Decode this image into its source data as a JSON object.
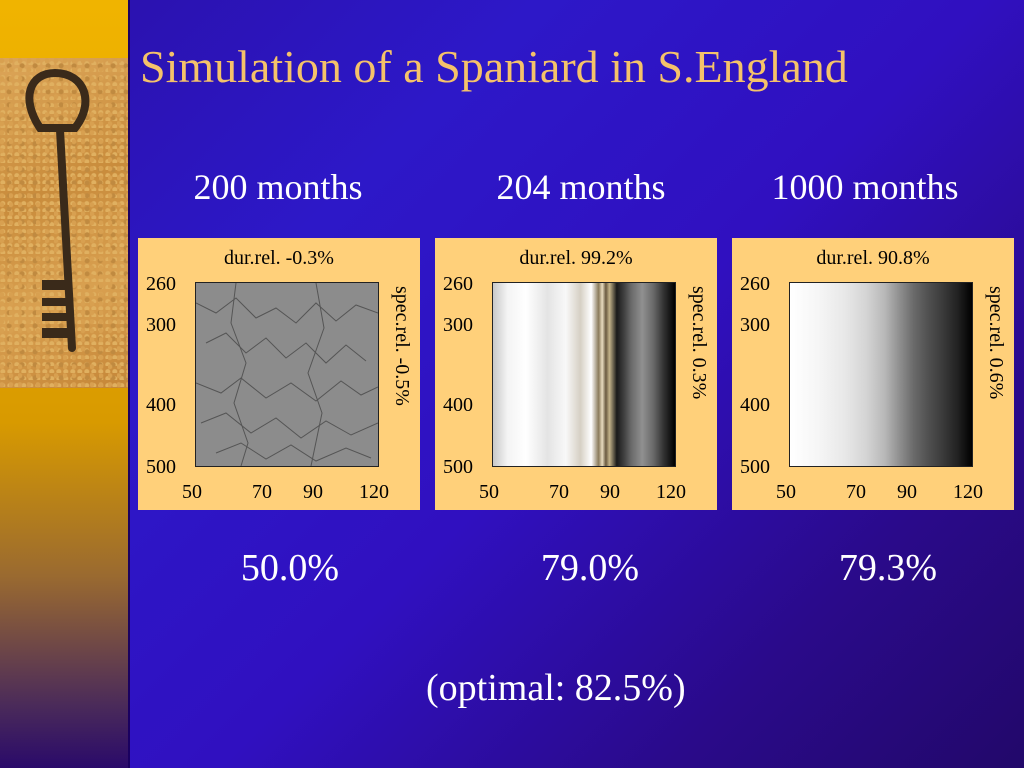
{
  "title": "Simulation of a Spaniard in S.England",
  "columns": [
    {
      "label": "200 months",
      "dur": "dur.rel. -0.3%",
      "spec": "spec.rel. -0.5%",
      "result": "50.0%"
    },
    {
      "label": "204 months",
      "dur": "dur.rel. 99.2%",
      "spec": "spec.rel. 0.3%",
      "result": "79.0%"
    },
    {
      "label": "1000 months",
      "dur": "dur.rel. 90.8%",
      "spec": "spec.rel. 0.6%",
      "result": "79.3%"
    }
  ],
  "y_ticks": [
    "260",
    "300",
    "400",
    "500"
  ],
  "x_ticks": [
    "50",
    "70",
    "90",
    "120"
  ],
  "optimal": "(optimal: 82.5%)",
  "sidebar_image": "antique-key-icon",
  "colors": {
    "title": "#f5c26a",
    "panel": "#ffd07a",
    "background": "#2d18c8"
  }
}
